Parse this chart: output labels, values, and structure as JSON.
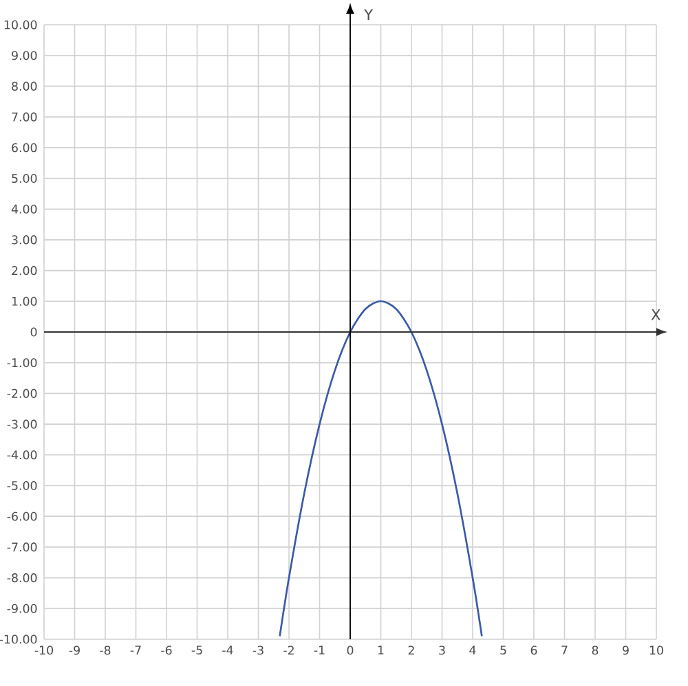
{
  "chart_data": {
    "type": "line",
    "xlabel": "X",
    "ylabel": "Y",
    "x": [
      -2.3,
      -2,
      -1.5,
      -1,
      -0.5,
      0,
      0.5,
      1,
      1.5,
      2,
      2.5,
      3,
      3.5,
      4,
      4.3
    ],
    "values": [
      -9.9,
      -8,
      -5.25,
      -3,
      -1.25,
      0,
      0.75,
      1,
      0.75,
      0,
      -1.25,
      -3,
      -5.25,
      -8,
      -9.9
    ],
    "color": "#3a5ba8",
    "xlim": [
      -10,
      10
    ],
    "ylim": [
      -10,
      10
    ],
    "xticks": [
      -10,
      -9,
      -8,
      -7,
      -6,
      -5,
      -4,
      -3,
      -2,
      -1,
      0,
      1,
      2,
      3,
      4,
      5,
      6,
      7,
      8,
      9,
      10
    ],
    "yticks": [
      {
        "value": -10,
        "label": "-10.00"
      },
      {
        "value": -9,
        "label": "-9.00"
      },
      {
        "value": -8,
        "label": "-8.00"
      },
      {
        "value": -7,
        "label": "-7.00"
      },
      {
        "value": -6,
        "label": "-6.00"
      },
      {
        "value": -5,
        "label": "-5.00"
      },
      {
        "value": -4,
        "label": "-4.00"
      },
      {
        "value": -3,
        "label": "-3.00"
      },
      {
        "value": -2,
        "label": "-2.00"
      },
      {
        "value": -1,
        "label": "-1.00"
      },
      0,
      {
        "value": 1,
        "label": "1.00"
      },
      {
        "value": 2,
        "label": "2.00"
      },
      {
        "value": 3,
        "label": "3.00"
      },
      {
        "value": 4,
        "label": "4.00"
      },
      {
        "value": 5,
        "label": "5.00"
      },
      {
        "value": 6,
        "label": "6.00"
      },
      {
        "value": 7,
        "label": "7.00"
      },
      {
        "value": 8,
        "label": "8.00"
      },
      {
        "value": 9,
        "label": "9.00"
      },
      {
        "value": 10,
        "label": "10.00"
      }
    ],
    "grid": true
  }
}
